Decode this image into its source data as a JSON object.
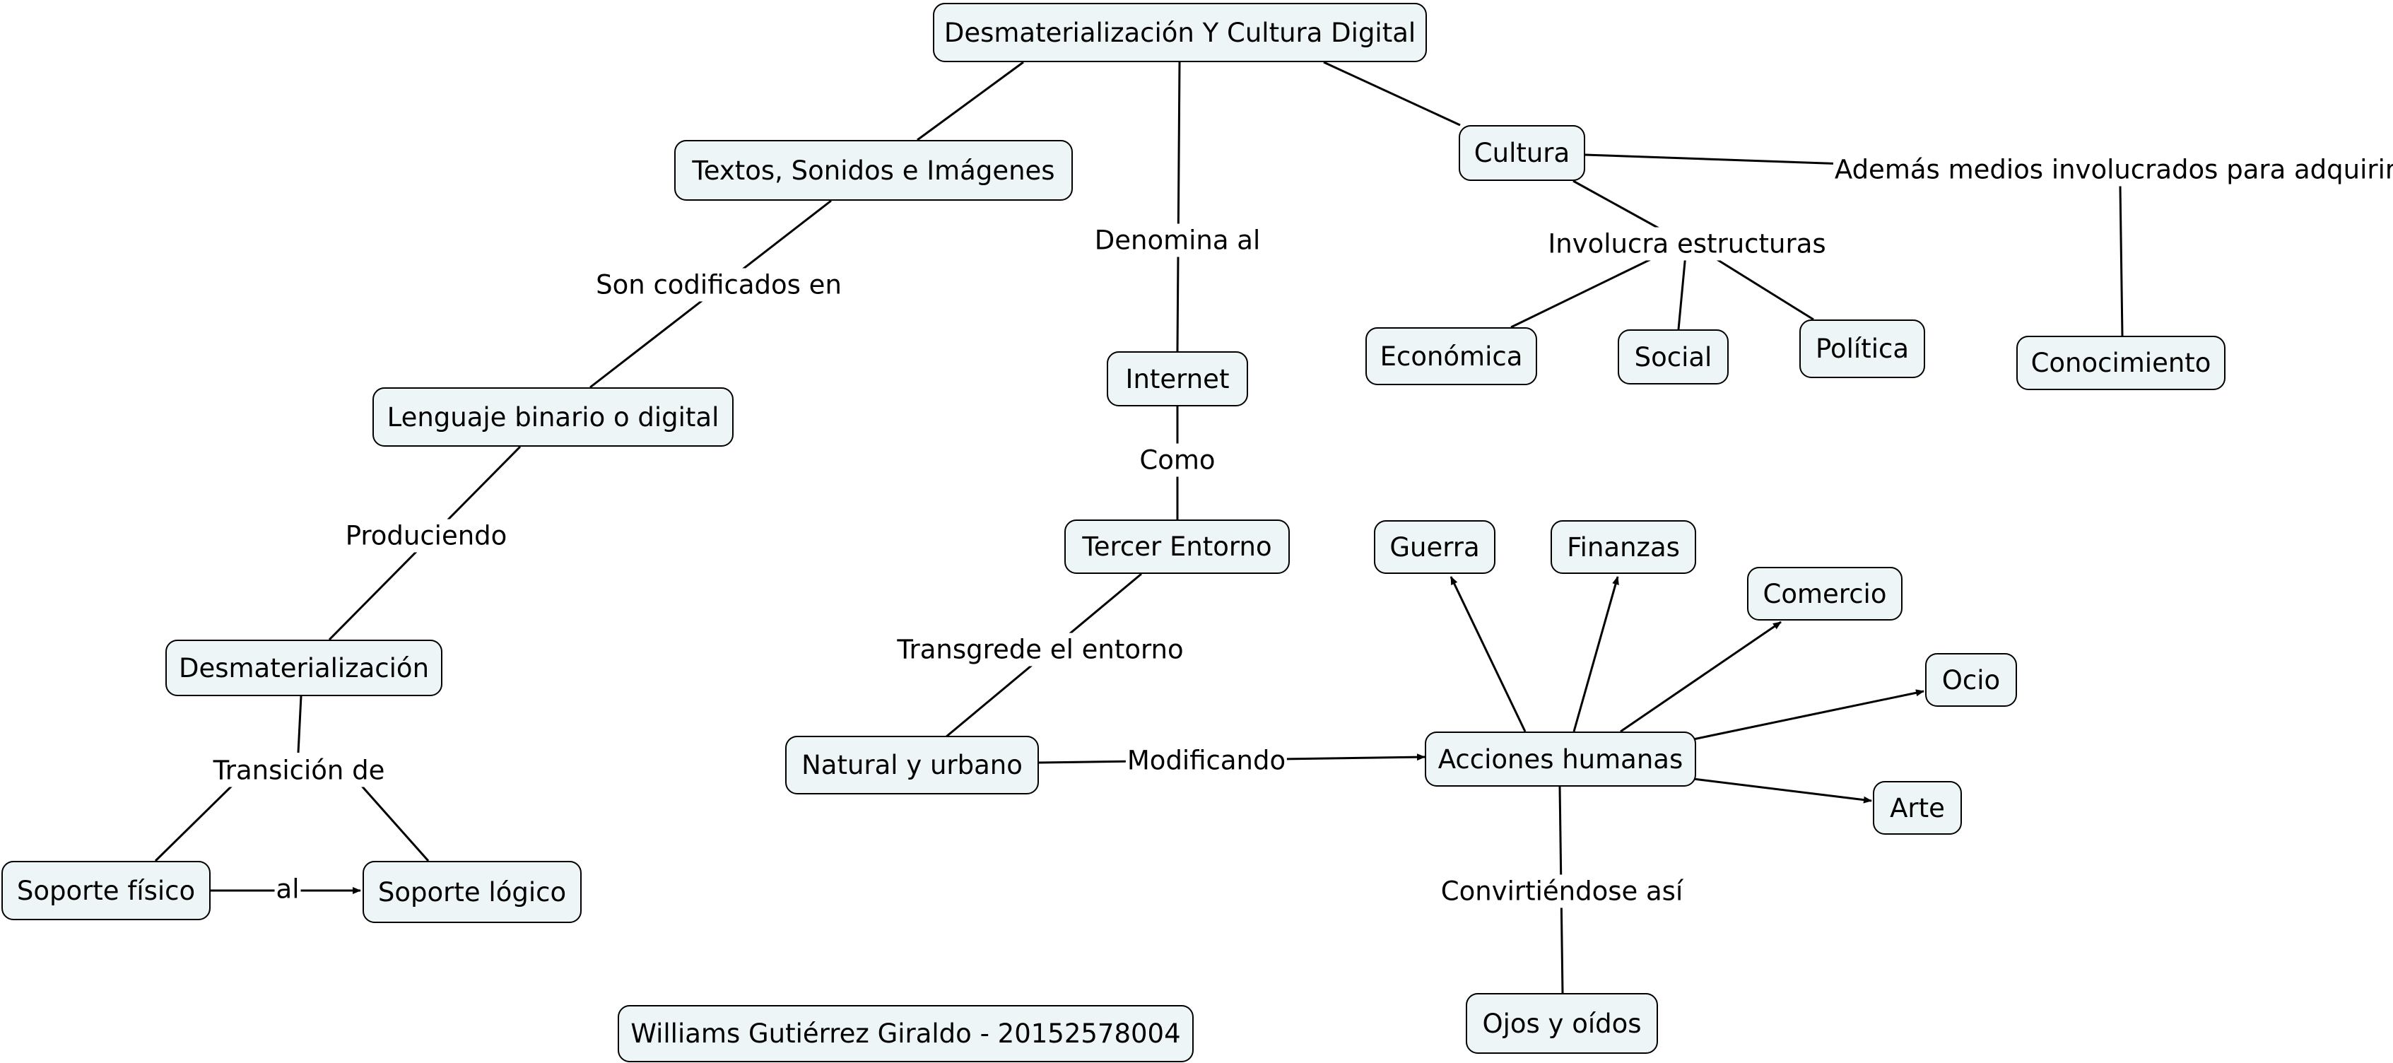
{
  "nodes": {
    "main": "Desmaterialización Y Cultura Digital",
    "textos": "Textos, Sonidos e Imágenes",
    "lenguaje": "Lenguaje binario o digital",
    "desmat": "Desmaterialización",
    "soporte_fisico": "Soporte físico",
    "soporte_logico": "Soporte lógico",
    "internet": "Internet",
    "tercer": "Tercer Entorno",
    "natural": "Natural y urbano",
    "acciones": "Acciones humanas",
    "ojos": "Ojos y oídos",
    "guerra": "Guerra",
    "finanzas": "Finanzas",
    "comercio": "Comercio",
    "ocio": "Ocio",
    "arte": "Arte",
    "cultura": "Cultura",
    "economica": "Económica",
    "social": "Social",
    "politica": "Política",
    "conocimiento": "Conocimiento",
    "autor": "Williams Gutiérrez Giraldo - 20152578004"
  },
  "links": {
    "son_codificados": "Son codificados en",
    "produciendo": "Produciendo",
    "transicion": "Transición de",
    "al": "al",
    "denomina": "Denomina al",
    "como": "Como",
    "transgrede": "Transgrede el entorno",
    "modificando": "Modificando",
    "convirtiendose": "Convirtiéndose así",
    "involucra": "Involucra estructuras",
    "ademas": "Además medios involucrados para adquirir"
  }
}
